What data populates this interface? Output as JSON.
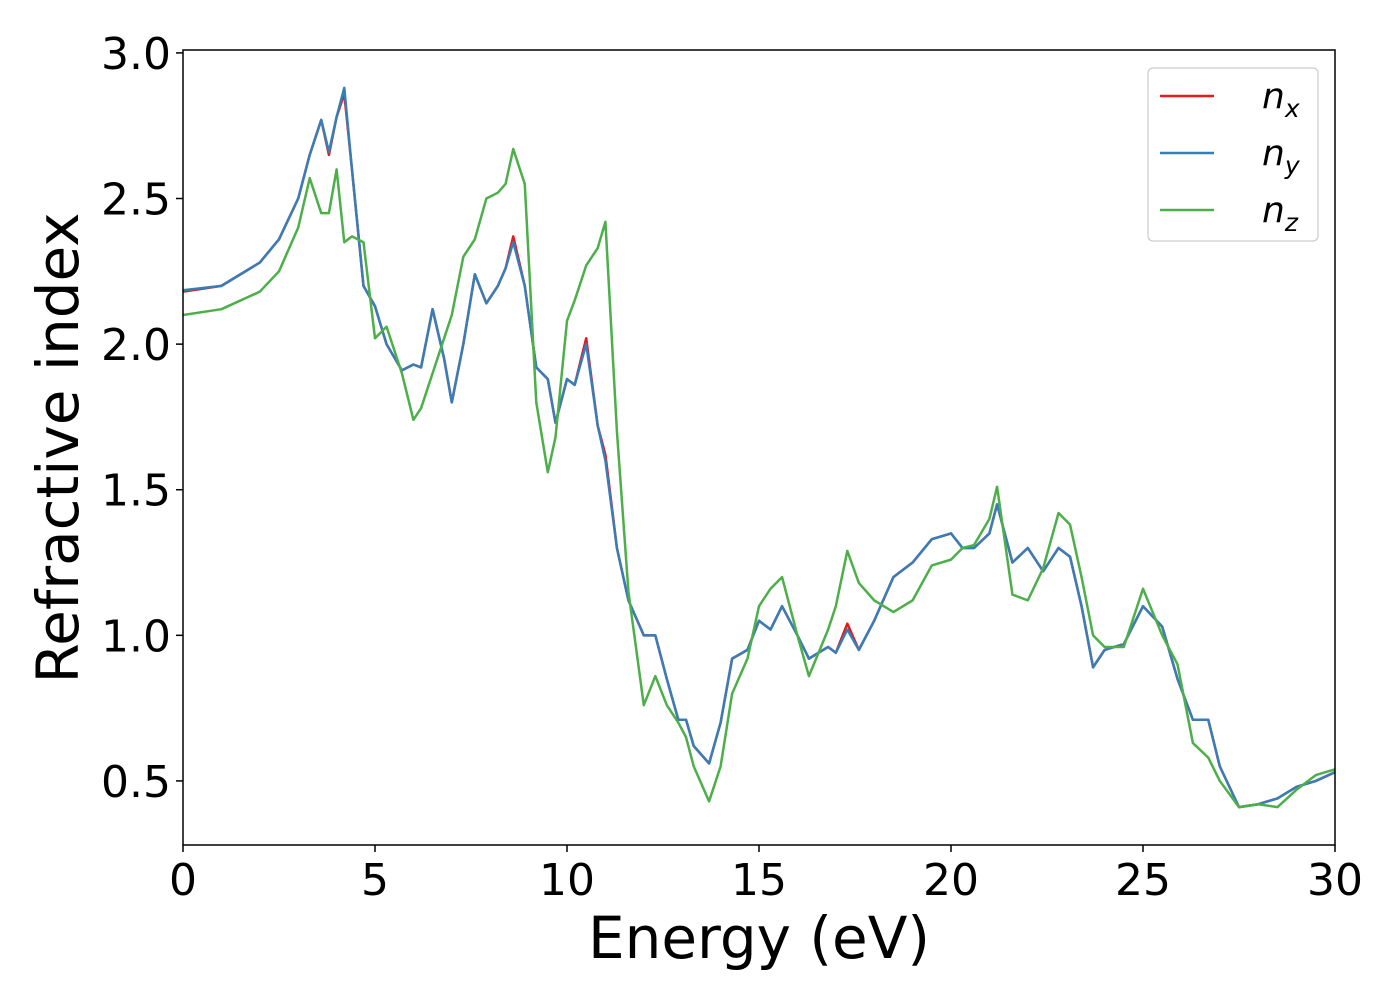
{
  "chart_data": {
    "type": "line",
    "xlabel": "Energy (eV)",
    "ylabel": "Refractive index",
    "x": [
      0,
      1,
      2,
      2.5,
      3,
      3.3,
      3.6,
      3.8,
      4.0,
      4.2,
      4.4,
      4.7,
      5.0,
      5.3,
      5.7,
      6.0,
      6.2,
      6.5,
      6.8,
      7.0,
      7.3,
      7.6,
      7.9,
      8.2,
      8.4,
      8.6,
      8.9,
      9.2,
      9.5,
      9.7,
      10.0,
      10.2,
      10.5,
      10.8,
      11.0,
      11.3,
      11.6,
      12.0,
      12.3,
      12.6,
      12.9,
      13.1,
      13.3,
      13.7,
      14.0,
      14.3,
      14.7,
      15.0,
      15.3,
      15.6,
      16.0,
      16.3,
      16.8,
      17.0,
      17.3,
      17.6,
      18.0,
      18.5,
      19.0,
      19.5,
      20.0,
      20.3,
      20.6,
      21.0,
      21.2,
      21.6,
      22.0,
      22.4,
      22.8,
      23.1,
      23.4,
      23.7,
      24.0,
      24.5,
      25.0,
      25.5,
      25.9,
      26.3,
      26.7,
      27.0,
      27.5,
      28.0,
      28.5,
      29.0,
      29.5,
      30.0
    ],
    "series": [
      {
        "name": "nx",
        "color": "#e41a1c",
        "values": [
          2.18,
          2.2,
          2.28,
          2.36,
          2.5,
          2.65,
          2.77,
          2.65,
          2.78,
          2.86,
          2.6,
          2.2,
          2.13,
          2.0,
          1.91,
          1.93,
          1.92,
          2.12,
          1.95,
          1.8,
          2.0,
          2.24,
          2.14,
          2.2,
          2.26,
          2.37,
          2.2,
          1.92,
          1.88,
          1.73,
          1.88,
          1.86,
          2.02,
          1.72,
          1.62,
          1.3,
          1.12,
          1.0,
          1.0,
          0.85,
          0.71,
          0.71,
          0.62,
          0.56,
          0.7,
          0.92,
          0.95,
          1.05,
          1.02,
          1.1,
          1.0,
          0.92,
          0.96,
          0.94,
          1.04,
          0.95,
          1.05,
          1.2,
          1.25,
          1.33,
          1.35,
          1.3,
          1.3,
          1.35,
          1.45,
          1.25,
          1.3,
          1.22,
          1.3,
          1.27,
          1.1,
          0.89,
          0.95,
          0.97,
          1.1,
          1.03,
          0.85,
          0.71,
          0.71,
          0.55,
          0.41,
          0.42,
          0.44,
          0.48,
          0.5,
          0.53
        ]
      },
      {
        "name": "ny",
        "color": "#377eb8",
        "values": [
          2.185,
          2.2,
          2.28,
          2.36,
          2.5,
          2.65,
          2.77,
          2.66,
          2.78,
          2.88,
          2.6,
          2.2,
          2.13,
          2.0,
          1.91,
          1.93,
          1.92,
          2.12,
          1.95,
          1.8,
          2.0,
          2.24,
          2.14,
          2.2,
          2.26,
          2.35,
          2.2,
          1.92,
          1.88,
          1.73,
          1.88,
          1.86,
          2.0,
          1.72,
          1.6,
          1.3,
          1.12,
          1.0,
          1.0,
          0.85,
          0.71,
          0.71,
          0.62,
          0.56,
          0.7,
          0.92,
          0.95,
          1.05,
          1.02,
          1.1,
          1.0,
          0.92,
          0.96,
          0.94,
          1.02,
          0.95,
          1.05,
          1.2,
          1.25,
          1.33,
          1.35,
          1.3,
          1.3,
          1.35,
          1.45,
          1.25,
          1.3,
          1.22,
          1.3,
          1.27,
          1.1,
          0.89,
          0.95,
          0.97,
          1.1,
          1.03,
          0.85,
          0.71,
          0.71,
          0.55,
          0.41,
          0.42,
          0.44,
          0.48,
          0.5,
          0.53
        ]
      },
      {
        "name": "nz",
        "color": "#4daf4a",
        "values": [
          2.1,
          2.12,
          2.18,
          2.25,
          2.4,
          2.57,
          2.45,
          2.45,
          2.6,
          2.35,
          2.37,
          2.35,
          2.02,
          2.06,
          1.9,
          1.74,
          1.78,
          1.9,
          2.02,
          2.1,
          2.3,
          2.36,
          2.5,
          2.52,
          2.55,
          2.67,
          2.55,
          1.8,
          1.56,
          1.68,
          2.08,
          2.15,
          2.27,
          2.33,
          2.42,
          1.7,
          1.15,
          0.76,
          0.86,
          0.76,
          0.7,
          0.65,
          0.55,
          0.43,
          0.55,
          0.8,
          0.92,
          1.1,
          1.16,
          1.2,
          1.0,
          0.86,
          1.02,
          1.1,
          1.29,
          1.18,
          1.12,
          1.08,
          1.12,
          1.24,
          1.26,
          1.3,
          1.31,
          1.4,
          1.51,
          1.14,
          1.12,
          1.23,
          1.42,
          1.38,
          1.2,
          1.0,
          0.96,
          0.96,
          1.16,
          1.0,
          0.9,
          0.63,
          0.58,
          0.5,
          0.41,
          0.42,
          0.41,
          0.47,
          0.52,
          0.54
        ]
      }
    ],
    "xlim": [
      0,
      30
    ],
    "xticks": [
      0,
      5,
      10,
      15,
      20,
      25,
      30
    ],
    "ylim": [
      0.28,
      3.01
    ],
    "yticks": [
      0.5,
      {
        "value": 1.0,
        "label": "1.0"
      },
      1.5,
      {
        "value": 2.0,
        "label": "2.0"
      },
      2.5,
      {
        "value": 3.0,
        "label": "3.0"
      }
    ],
    "legend": "upper right",
    "grid": false
  }
}
